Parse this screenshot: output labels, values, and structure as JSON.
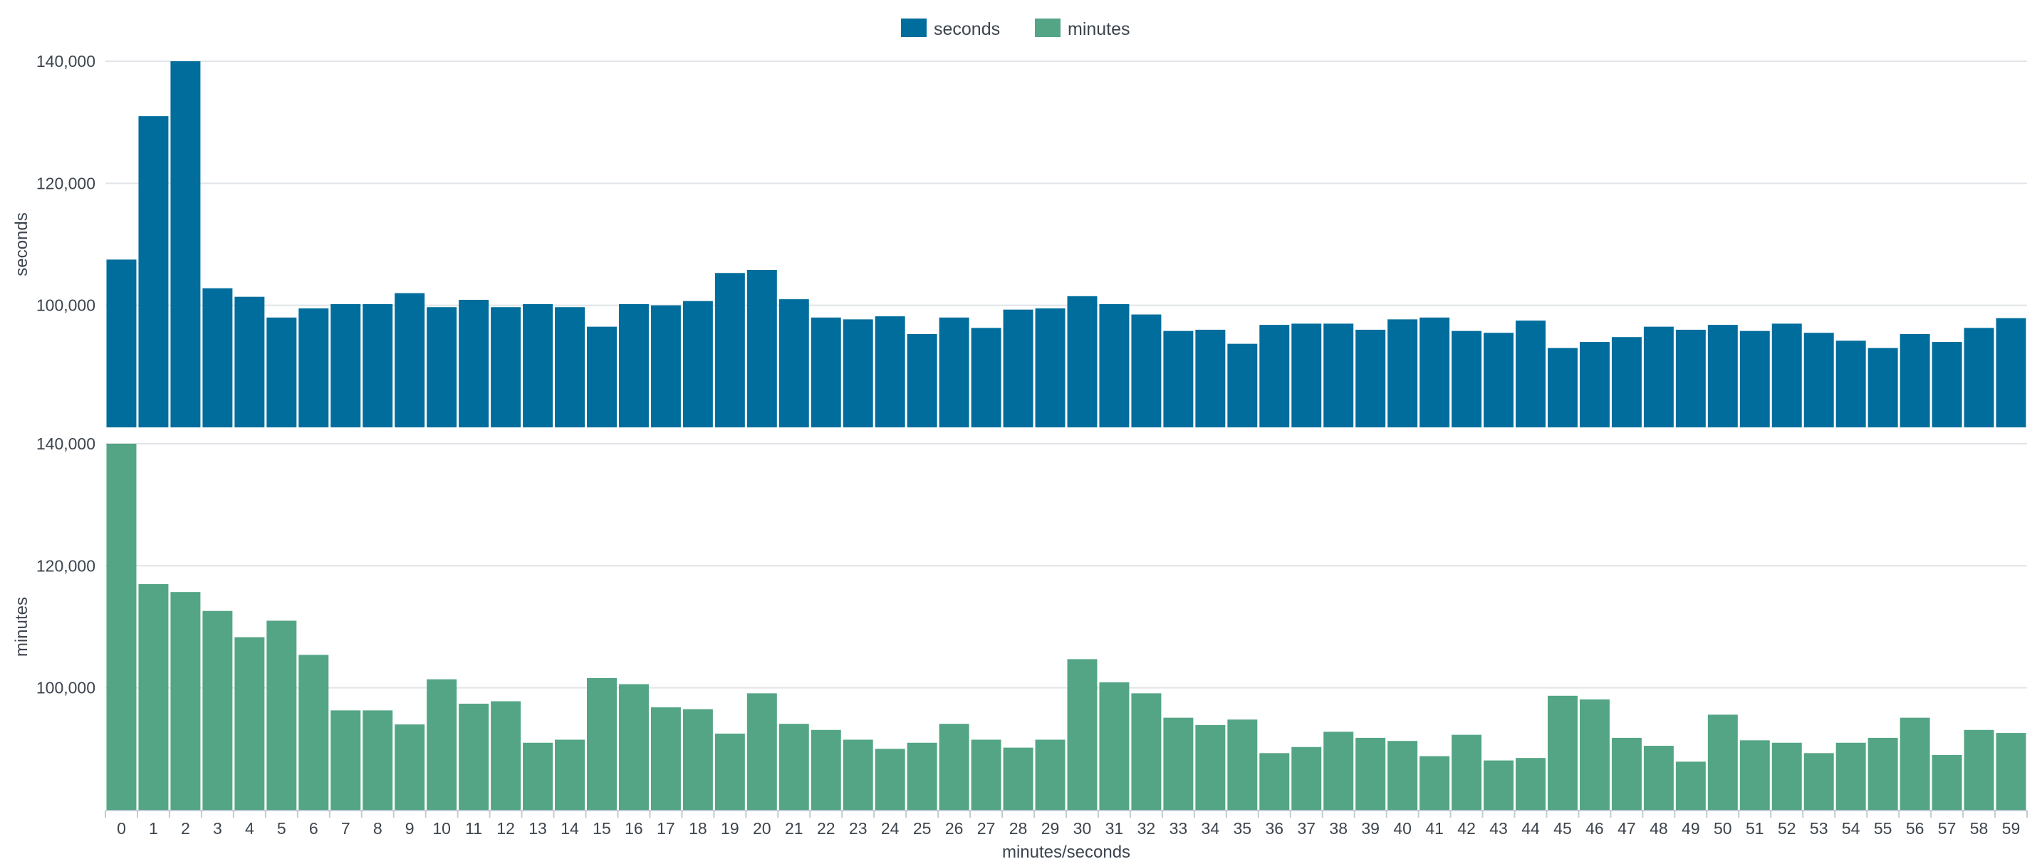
{
  "chart_data": {
    "type": "bar",
    "xlabel": "minutes/seconds",
    "categories": [
      "0",
      "1",
      "2",
      "3",
      "4",
      "5",
      "6",
      "7",
      "8",
      "9",
      "10",
      "11",
      "12",
      "13",
      "14",
      "15",
      "16",
      "17",
      "18",
      "19",
      "20",
      "21",
      "22",
      "23",
      "24",
      "25",
      "26",
      "27",
      "28",
      "29",
      "30",
      "31",
      "32",
      "33",
      "34",
      "35",
      "36",
      "37",
      "38",
      "39",
      "40",
      "41",
      "42",
      "43",
      "44",
      "45",
      "46",
      "47",
      "48",
      "49",
      "50",
      "51",
      "52",
      "53",
      "54",
      "55",
      "56",
      "57",
      "58",
      "59"
    ],
    "ylim": [
      80000,
      140000
    ],
    "yticks": [
      "140,000",
      "120,000",
      "100,000"
    ],
    "ytick_values": [
      140000,
      120000,
      100000
    ],
    "legend_position": "top-center",
    "grid": true,
    "series": [
      {
        "name": "seconds",
        "ylabel": "seconds",
        "color": "#006d9c",
        "values": [
          107500,
          131000,
          140000,
          102800,
          101400,
          98000,
          99500,
          100200,
          100200,
          102000,
          99700,
          100900,
          99700,
          100200,
          99700,
          96500,
          100200,
          100000,
          100700,
          105300,
          105800,
          101000,
          98000,
          97700,
          98200,
          95300,
          98000,
          96300,
          99300,
          99500,
          101500,
          100200,
          98500,
          95800,
          96000,
          93700,
          96800,
          97000,
          97000,
          96000,
          97700,
          98000,
          95800,
          95500,
          97500,
          93000,
          94000,
          94800,
          96500,
          96000,
          96800,
          95800,
          97000,
          95500,
          94200,
          93000,
          95300,
          94000,
          96300,
          97900
        ]
      },
      {
        "name": "minutes",
        "ylabel": "minutes",
        "color": "#53a585",
        "values": [
          140000,
          117000,
          115700,
          112600,
          108300,
          111000,
          105400,
          96300,
          96300,
          94000,
          101400,
          97400,
          97800,
          91000,
          91500,
          101600,
          100600,
          96800,
          96500,
          92500,
          99100,
          94100,
          93100,
          91500,
          90000,
          91000,
          94100,
          91500,
          90200,
          91500,
          104700,
          100900,
          99100,
          95100,
          93900,
          94800,
          89300,
          90300,
          92800,
          91800,
          91300,
          88800,
          92300,
          88100,
          88500,
          98700,
          98100,
          91800,
          90500,
          87900,
          95600,
          91400,
          91000,
          89300,
          91000,
          91800,
          95100,
          89000,
          93100,
          92600
        ]
      }
    ]
  }
}
